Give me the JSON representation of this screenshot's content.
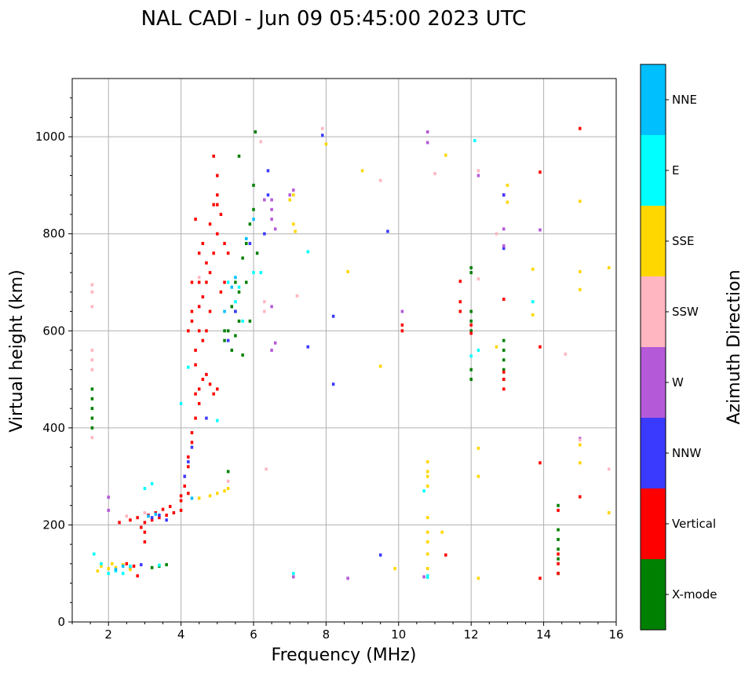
{
  "chart_data": {
    "type": "scatter",
    "title": "NAL CADI - Jun 09 05:45:00 2023 UTC",
    "xlabel": "Frequency (MHz)",
    "ylabel": "Virtual height (km)",
    "xlim": [
      1,
      16
    ],
    "ylim": [
      0,
      1120
    ],
    "xticks": [
      2,
      4,
      6,
      8,
      10,
      12,
      14,
      16
    ],
    "yticks": [
      0,
      200,
      400,
      600,
      800,
      1000
    ],
    "grid": true,
    "colorbar": {
      "title": "Azimuth Direction",
      "categories": [
        {
          "name": "X-mode",
          "color": "#008000"
        },
        {
          "name": "Vertical",
          "color": "#ff0000"
        },
        {
          "name": "NNW",
          "color": "#3a3aff"
        },
        {
          "name": "W",
          "color": "#b45ad8"
        },
        {
          "name": "SSW",
          "color": "#ffb6c1"
        },
        {
          "name": "SSE",
          "color": "#ffd700"
        },
        {
          "name": "E",
          "color": "#00ffff"
        },
        {
          "name": "NNE",
          "color": "#00bfff"
        }
      ]
    },
    "series": [
      {
        "name": "X-mode",
        "points": [
          [
            1.55,
            400
          ],
          [
            1.55,
            420
          ],
          [
            1.55,
            440
          ],
          [
            1.55,
            460
          ],
          [
            1.55,
            480
          ],
          [
            3.2,
            112
          ],
          [
            3.4,
            115
          ],
          [
            3.6,
            118
          ],
          [
            5.2,
            580
          ],
          [
            5.3,
            600
          ],
          [
            5.4,
            560
          ],
          [
            5.5,
            590
          ],
          [
            5.6,
            620
          ],
          [
            5.4,
            650
          ],
          [
            5.5,
            700
          ],
          [
            5.6,
            680
          ],
          [
            5.7,
            750
          ],
          [
            5.8,
            780
          ],
          [
            5.9,
            820
          ],
          [
            6.0,
            850
          ],
          [
            6.0,
            900
          ],
          [
            5.8,
            700
          ],
          [
            5.9,
            620
          ],
          [
            6.1,
            760
          ],
          [
            5.7,
            550
          ],
          [
            5.3,
            310
          ],
          [
            5.6,
            960
          ],
          [
            6.05,
            1010
          ],
          [
            5.5,
            640
          ],
          [
            5.2,
            600
          ],
          [
            12.0,
            500
          ],
          [
            12.0,
            520
          ],
          [
            12.0,
            600
          ],
          [
            12.0,
            620
          ],
          [
            12.0,
            640
          ],
          [
            12.0,
            720
          ],
          [
            12.0,
            730
          ],
          [
            12.9,
            540
          ],
          [
            12.9,
            560
          ],
          [
            12.9,
            580
          ],
          [
            12.9,
            520
          ],
          [
            12.9,
            500
          ],
          [
            14.4,
            100
          ],
          [
            14.4,
            130
          ],
          [
            14.4,
            150
          ],
          [
            14.4,
            170
          ],
          [
            14.4,
            190
          ],
          [
            14.4,
            240
          ]
        ]
      },
      {
        "name": "Vertical",
        "points": [
          [
            2.3,
            205
          ],
          [
            2.6,
            210
          ],
          [
            2.8,
            215
          ],
          [
            3.0,
            205
          ],
          [
            3.2,
            210
          ],
          [
            3.4,
            215
          ],
          [
            3.6,
            220
          ],
          [
            3.8,
            225
          ],
          [
            4.0,
            230
          ],
          [
            3.1,
            220
          ],
          [
            3.3,
            225
          ],
          [
            3.5,
            232
          ],
          [
            3.7,
            238
          ],
          [
            2.9,
            195
          ],
          [
            3.0,
            185
          ],
          [
            3.0,
            165
          ],
          [
            2.7,
            115
          ],
          [
            2.8,
            95
          ],
          [
            2.5,
            120
          ],
          [
            4.0,
            260
          ],
          [
            4.1,
            280
          ],
          [
            4.1,
            300
          ],
          [
            4.2,
            320
          ],
          [
            4.2,
            340
          ],
          [
            4.3,
            370
          ],
          [
            4.3,
            390
          ],
          [
            4.0,
            250
          ],
          [
            4.2,
            265
          ],
          [
            4.4,
            420
          ],
          [
            4.5,
            450
          ],
          [
            4.5,
            480
          ],
          [
            4.6,
            500
          ],
          [
            4.7,
            510
          ],
          [
            4.8,
            490
          ],
          [
            4.9,
            470
          ],
          [
            4.4,
            530
          ],
          [
            4.2,
            600
          ],
          [
            4.3,
            620
          ],
          [
            4.5,
            650
          ],
          [
            4.6,
            670
          ],
          [
            4.7,
            700
          ],
          [
            4.8,
            720
          ],
          [
            4.9,
            760
          ],
          [
            5.0,
            800
          ],
          [
            5.1,
            840
          ],
          [
            5.0,
            880
          ],
          [
            5.0,
            920
          ],
          [
            4.9,
            960
          ],
          [
            5.2,
            780
          ],
          [
            5.3,
            760
          ],
          [
            5.2,
            700
          ],
          [
            4.6,
            580
          ],
          [
            4.4,
            560
          ],
          [
            4.3,
            640
          ],
          [
            4.5,
            700
          ],
          [
            4.7,
            740
          ],
          [
            4.8,
            820
          ],
          [
            4.9,
            860
          ],
          [
            5.1,
            680
          ],
          [
            4.6,
            780
          ],
          [
            4.5,
            760
          ],
          [
            5.0,
            480
          ],
          [
            4.4,
            470
          ],
          [
            4.3,
            700
          ],
          [
            4.7,
            600
          ],
          [
            4.8,
            640
          ],
          [
            4.5,
            600
          ],
          [
            5.0,
            860
          ],
          [
            4.4,
            830
          ],
          [
            10.1,
            600
          ],
          [
            10.1,
            612
          ],
          [
            11.3,
            138
          ],
          [
            11.7,
            640
          ],
          [
            11.7,
            660
          ],
          [
            11.7,
            702
          ],
          [
            12.0,
            595
          ],
          [
            12.0,
            612
          ],
          [
            12.9,
            480
          ],
          [
            12.9,
            500
          ],
          [
            12.9,
            515
          ],
          [
            12.9,
            665
          ],
          [
            12.9,
            880
          ],
          [
            13.9,
            90
          ],
          [
            13.9,
            328
          ],
          [
            13.9,
            567
          ],
          [
            13.9,
            927
          ],
          [
            14.4,
            100
          ],
          [
            14.4,
            120
          ],
          [
            14.4,
            140
          ],
          [
            14.4,
            230
          ],
          [
            15.0,
            258
          ],
          [
            15.0,
            1017
          ]
        ]
      },
      {
        "name": "NNW",
        "points": [
          [
            3.2,
            215
          ],
          [
            3.4,
            220
          ],
          [
            3.6,
            210
          ],
          [
            2.6,
            112
          ],
          [
            2.9,
            118
          ],
          [
            4.1,
            300
          ],
          [
            4.2,
            330
          ],
          [
            4.3,
            360
          ],
          [
            4.7,
            420
          ],
          [
            5.3,
            580
          ],
          [
            5.5,
            640
          ],
          [
            5.9,
            780
          ],
          [
            6.4,
            880
          ],
          [
            6.4,
            930
          ],
          [
            7.9,
            1003
          ],
          [
            8.2,
            490
          ],
          [
            8.2,
            630
          ],
          [
            9.5,
            138
          ],
          [
            9.7,
            805
          ],
          [
            12.9,
            880
          ],
          [
            12.9,
            770
          ],
          [
            7.5,
            567
          ],
          [
            6.3,
            800
          ]
        ]
      },
      {
        "name": "W",
        "points": [
          [
            2.0,
            230
          ],
          [
            2.0,
            257
          ],
          [
            6.5,
            560
          ],
          [
            6.6,
            575
          ],
          [
            6.5,
            650
          ],
          [
            6.6,
            810
          ],
          [
            6.5,
            830
          ],
          [
            6.5,
            850
          ],
          [
            6.5,
            870
          ],
          [
            7.0,
            880
          ],
          [
            7.1,
            93
          ],
          [
            8.6,
            90
          ],
          [
            10.1,
            640
          ],
          [
            10.7,
            93
          ],
          [
            10.8,
            988
          ],
          [
            10.8,
            1010
          ],
          [
            12.2,
            920
          ],
          [
            12.9,
            775
          ],
          [
            12.9,
            810
          ],
          [
            13.9,
            808
          ],
          [
            15.0,
            378
          ],
          [
            6.3,
            870
          ],
          [
            7.1,
            890
          ]
        ]
      },
      {
        "name": "SSW",
        "points": [
          [
            1.55,
            380
          ],
          [
            1.55,
            520
          ],
          [
            1.55,
            540
          ],
          [
            1.55,
            560
          ],
          [
            1.55,
            650
          ],
          [
            1.55,
            680
          ],
          [
            1.55,
            695
          ],
          [
            2.5,
            218
          ],
          [
            3.0,
            225
          ],
          [
            5.3,
            290
          ],
          [
            6.3,
            640
          ],
          [
            6.3,
            660
          ],
          [
            6.2,
            990
          ],
          [
            6.35,
            315
          ],
          [
            7.2,
            672
          ],
          [
            7.9,
            1017
          ],
          [
            9.5,
            910
          ],
          [
            11.0,
            924
          ],
          [
            12.2,
            930
          ],
          [
            12.2,
            707
          ],
          [
            12.7,
            800
          ],
          [
            14.6,
            552
          ],
          [
            15.0,
            375
          ],
          [
            15.8,
            315
          ],
          [
            4.5,
            710
          ]
        ]
      },
      {
        "name": "SSE",
        "points": [
          [
            1.7,
            105
          ],
          [
            1.8,
            115
          ],
          [
            2.0,
            110
          ],
          [
            2.1,
            120
          ],
          [
            2.2,
            112
          ],
          [
            2.4,
            118
          ],
          [
            2.6,
            108
          ],
          [
            4.5,
            255
          ],
          [
            4.8,
            260
          ],
          [
            5.0,
            265
          ],
          [
            5.2,
            270
          ],
          [
            5.3,
            275
          ],
          [
            7.0,
            870
          ],
          [
            7.1,
            880
          ],
          [
            7.1,
            820
          ],
          [
            7.15,
            805
          ],
          [
            8.0,
            985
          ],
          [
            8.6,
            722
          ],
          [
            9.0,
            930
          ],
          [
            9.5,
            527
          ],
          [
            9.9,
            110
          ],
          [
            10.8,
            110
          ],
          [
            10.8,
            140
          ],
          [
            10.8,
            165
          ],
          [
            10.8,
            185
          ],
          [
            10.8,
            215
          ],
          [
            10.8,
            280
          ],
          [
            10.8,
            300
          ],
          [
            10.8,
            310
          ],
          [
            10.8,
            330
          ],
          [
            11.2,
            185
          ],
          [
            11.3,
            962
          ],
          [
            12.2,
            90
          ],
          [
            12.2,
            300
          ],
          [
            12.2,
            358
          ],
          [
            12.7,
            567
          ],
          [
            13.0,
            865
          ],
          [
            13.0,
            900
          ],
          [
            13.7,
            633
          ],
          [
            13.7,
            727
          ],
          [
            15.0,
            328
          ],
          [
            15.0,
            365
          ],
          [
            15.0,
            685
          ],
          [
            15.0,
            722
          ],
          [
            15.0,
            867
          ],
          [
            15.8,
            225
          ],
          [
            15.8,
            730
          ]
        ]
      },
      {
        "name": "E",
        "points": [
          [
            1.6,
            140
          ],
          [
            1.8,
            120
          ],
          [
            2.0,
            100
          ],
          [
            2.2,
            105
          ],
          [
            2.4,
            100
          ],
          [
            2.6,
            115
          ],
          [
            3.4,
            117
          ],
          [
            3.0,
            275
          ],
          [
            3.2,
            285
          ],
          [
            4.0,
            450
          ],
          [
            4.2,
            525
          ],
          [
            5.0,
            415
          ],
          [
            5.3,
            700
          ],
          [
            5.5,
            660
          ],
          [
            5.6,
            690
          ],
          [
            5.7,
            620
          ],
          [
            6.0,
            720
          ],
          [
            6.2,
            720
          ],
          [
            7.1,
            100
          ],
          [
            7.5,
            763
          ],
          [
            10.7,
            270
          ],
          [
            10.8,
            95
          ],
          [
            10.8,
            92
          ],
          [
            12.1,
            992
          ],
          [
            12.2,
            560
          ],
          [
            13.7,
            660
          ],
          [
            12.0,
            548
          ]
        ]
      },
      {
        "name": "NNE",
        "points": [
          [
            2.2,
            108
          ],
          [
            2.4,
            115
          ],
          [
            3.1,
            218
          ],
          [
            3.3,
            222
          ],
          [
            4.3,
            255
          ],
          [
            5.4,
            690
          ],
          [
            5.5,
            710
          ],
          [
            5.2,
            640
          ],
          [
            5.8,
            790
          ],
          [
            6.0,
            830
          ]
        ]
      }
    ]
  }
}
